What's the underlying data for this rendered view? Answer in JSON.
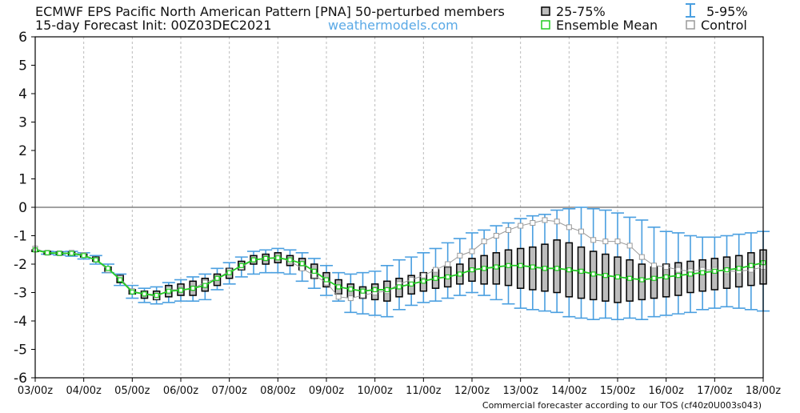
{
  "header": {
    "title_line1": "ECMWF EPS Pacific North American Pattern [PNA]  50-perturbed members",
    "title_line2": "15-day Forecast Init: 00Z03DEC2021",
    "brand": "weathermodels.com"
  },
  "legend": {
    "iqr_label": "25-75%",
    "whisker_label": "5-95%",
    "mean_label": "Ensemble Mean",
    "control_label": "Control"
  },
  "footer": "Commercial forecaster according to our TOS (cf40z0U003s043)",
  "colors": {
    "mean": "#22cc22",
    "whisker": "#4a9fe0",
    "box_fill": "#bdbdbd",
    "control": "#9a9a9a",
    "zero_line": "#444444",
    "grid": "#bbbbbb"
  },
  "chart_data": {
    "type": "box",
    "xlim": [
      0,
      15
    ],
    "ylim": [
      -6,
      6
    ],
    "x_ticks": [
      {
        "x": 0,
        "label": "03/00z"
      },
      {
        "x": 1,
        "label": "04/00z"
      },
      {
        "x": 2,
        "label": "05/00z"
      },
      {
        "x": 3,
        "label": "06/00z"
      },
      {
        "x": 4,
        "label": "07/00z"
      },
      {
        "x": 5,
        "label": "08/00z"
      },
      {
        "x": 6,
        "label": "09/00z"
      },
      {
        "x": 7,
        "label": "10/00z"
      },
      {
        "x": 8,
        "label": "11/00z"
      },
      {
        "x": 9,
        "label": "12/00z"
      },
      {
        "x": 10,
        "label": "13/00z"
      },
      {
        "x": 11,
        "label": "14/00z"
      },
      {
        "x": 12,
        "label": "15/00z"
      },
      {
        "x": 13,
        "label": "16/00z"
      },
      {
        "x": 14,
        "label": "17/00z"
      },
      {
        "x": 15,
        "label": "18/00z"
      }
    ],
    "y_ticks": [
      6,
      5,
      4,
      3,
      2,
      1,
      0,
      -1,
      -2,
      -3,
      -4,
      -5,
      -6
    ],
    "grid": "vertical dashed",
    "legend_position": "top",
    "steps": [
      {
        "t": 0.0,
        "p5": -1.5,
        "q1": -1.5,
        "q3": -1.5,
        "p95": -1.5,
        "mean": -1.5,
        "control": -1.45
      },
      {
        "t": 0.25,
        "p5": -1.65,
        "q1": -1.65,
        "q3": -1.55,
        "p95": -1.55,
        "mean": -1.6,
        "control": -1.6
      },
      {
        "t": 0.5,
        "p5": -1.68,
        "q1": -1.66,
        "q3": -1.58,
        "p95": -1.56,
        "mean": -1.62,
        "control": -1.62
      },
      {
        "t": 0.75,
        "p5": -1.72,
        "q1": -1.68,
        "q3": -1.58,
        "p95": -1.55,
        "mean": -1.62,
        "control": -1.6
      },
      {
        "t": 1.0,
        "p5": -1.82,
        "q1": -1.75,
        "q3": -1.65,
        "p95": -1.6,
        "mean": -1.7,
        "control": -1.68
      },
      {
        "t": 1.25,
        "p5": -2.0,
        "q1": -1.9,
        "q3": -1.75,
        "p95": -1.7,
        "mean": -1.85,
        "control": -1.85
      },
      {
        "t": 1.5,
        "p5": -2.3,
        "q1": -2.25,
        "q3": -2.1,
        "p95": -2.0,
        "mean": -2.15,
        "control": -2.2
      },
      {
        "t": 1.75,
        "p5": -2.75,
        "q1": -2.65,
        "q3": -2.4,
        "p95": -2.35,
        "mean": -2.55,
        "control": -2.5
      },
      {
        "t": 2.0,
        "p5": -3.2,
        "q1": -3.05,
        "q3": -2.9,
        "p95": -2.75,
        "mean": -2.98,
        "control": -2.95
      },
      {
        "t": 2.25,
        "p5": -3.35,
        "q1": -3.2,
        "q3": -2.95,
        "p95": -2.85,
        "mean": -3.05,
        "control": -3.05
      },
      {
        "t": 2.5,
        "p5": -3.4,
        "q1": -3.25,
        "q3": -2.95,
        "p95": -2.8,
        "mean": -3.1,
        "control": -3.15
      },
      {
        "t": 2.75,
        "p5": -3.35,
        "q1": -3.15,
        "q3": -2.75,
        "p95": -2.65,
        "mean": -2.95,
        "control": -2.9
      },
      {
        "t": 3.0,
        "p5": -3.3,
        "q1": -3.1,
        "q3": -2.7,
        "p95": -2.55,
        "mean": -2.92,
        "control": -2.9
      },
      {
        "t": 3.25,
        "p5": -3.3,
        "q1": -3.1,
        "q3": -2.6,
        "p95": -2.45,
        "mean": -2.85,
        "control": -2.85
      },
      {
        "t": 3.5,
        "p5": -3.25,
        "q1": -2.95,
        "q3": -2.5,
        "p95": -2.35,
        "mean": -2.75,
        "control": -2.65
      },
      {
        "t": 3.75,
        "p5": -2.9,
        "q1": -2.75,
        "q3": -2.35,
        "p95": -2.15,
        "mean": -2.5,
        "control": -2.5
      },
      {
        "t": 4.0,
        "p5": -2.7,
        "q1": -2.5,
        "q3": -2.15,
        "p95": -1.95,
        "mean": -2.3,
        "control": -2.25
      },
      {
        "t": 4.25,
        "p5": -2.45,
        "q1": -2.2,
        "q3": -1.9,
        "p95": -1.75,
        "mean": -2.05,
        "control": -2.1
      },
      {
        "t": 4.5,
        "p5": -2.35,
        "q1": -2.0,
        "q3": -1.7,
        "p95": -1.55,
        "mean": -1.85,
        "control": -1.85
      },
      {
        "t": 4.75,
        "p5": -2.3,
        "q1": -2.0,
        "q3": -1.65,
        "p95": -1.5,
        "mean": -1.8,
        "control": -1.8
      },
      {
        "t": 5.0,
        "p5": -2.3,
        "q1": -1.95,
        "q3": -1.6,
        "p95": -1.45,
        "mean": -1.78,
        "control": -1.75
      },
      {
        "t": 5.25,
        "p5": -2.35,
        "q1": -2.05,
        "q3": -1.7,
        "p95": -1.5,
        "mean": -1.85,
        "control": -1.9
      },
      {
        "t": 5.5,
        "p5": -2.6,
        "q1": -2.2,
        "q3": -1.8,
        "p95": -1.6,
        "mean": -1.98,
        "control": -2.15
      },
      {
        "t": 5.75,
        "p5": -2.85,
        "q1": -2.5,
        "q3": -2.0,
        "p95": -1.8,
        "mean": -2.25,
        "control": -2.4
      },
      {
        "t": 6.0,
        "p5": -3.1,
        "q1": -2.8,
        "q3": -2.3,
        "p95": -2.05,
        "mean": -2.55,
        "control": -2.65
      },
      {
        "t": 6.25,
        "p5": -3.3,
        "q1": -3.05,
        "q3": -2.55,
        "p95": -2.3,
        "mean": -2.8,
        "control": -3.15
      },
      {
        "t": 6.5,
        "p5": -3.7,
        "q1": -3.15,
        "q3": -2.7,
        "p95": -2.35,
        "mean": -2.88,
        "control": -3.2
      },
      {
        "t": 6.75,
        "p5": -3.75,
        "q1": -3.2,
        "q3": -2.8,
        "p95": -2.3,
        "mean": -2.95,
        "control": -3.1
      },
      {
        "t": 7.0,
        "p5": -3.8,
        "q1": -3.25,
        "q3": -2.7,
        "p95": -2.25,
        "mean": -2.9,
        "control": -3.0
      },
      {
        "t": 7.25,
        "p5": -3.85,
        "q1": -3.3,
        "q3": -2.6,
        "p95": -2.05,
        "mean": -2.9,
        "control": -2.95
      },
      {
        "t": 7.5,
        "p5": -3.6,
        "q1": -3.15,
        "q3": -2.5,
        "p95": -1.85,
        "mean": -2.8,
        "control": -2.7
      },
      {
        "t": 7.75,
        "p5": -3.45,
        "q1": -3.05,
        "q3": -2.4,
        "p95": -1.75,
        "mean": -2.7,
        "control": -2.55
      },
      {
        "t": 8.0,
        "p5": -3.35,
        "q1": -2.95,
        "q3": -2.3,
        "p95": -1.6,
        "mean": -2.6,
        "control": -2.4
      },
      {
        "t": 8.25,
        "p5": -3.3,
        "q1": -2.85,
        "q3": -2.2,
        "p95": -1.45,
        "mean": -2.5,
        "control": -2.2
      },
      {
        "t": 8.5,
        "p5": -3.2,
        "q1": -2.8,
        "q3": -2.1,
        "p95": -1.25,
        "mean": -2.45,
        "control": -2.0
      },
      {
        "t": 8.75,
        "p5": -3.1,
        "q1": -2.7,
        "q3": -2.0,
        "p95": -1.1,
        "mean": -2.35,
        "control": -1.7
      },
      {
        "t": 9.0,
        "p5": -3.0,
        "q1": -2.6,
        "q3": -1.8,
        "p95": -0.9,
        "mean": -2.2,
        "control": -1.55
      },
      {
        "t": 9.25,
        "p5": -3.1,
        "q1": -2.7,
        "q3": -1.7,
        "p95": -0.8,
        "mean": -2.15,
        "control": -1.2
      },
      {
        "t": 9.5,
        "p5": -3.25,
        "q1": -2.7,
        "q3": -1.6,
        "p95": -0.65,
        "mean": -2.1,
        "control": -1.0
      },
      {
        "t": 9.75,
        "p5": -3.4,
        "q1": -2.75,
        "q3": -1.5,
        "p95": -0.55,
        "mean": -2.05,
        "control": -0.8
      },
      {
        "t": 10.0,
        "p5": -3.55,
        "q1": -2.85,
        "q3": -1.45,
        "p95": -0.4,
        "mean": -2.05,
        "control": -0.65
      },
      {
        "t": 10.25,
        "p5": -3.6,
        "q1": -2.9,
        "q3": -1.4,
        "p95": -0.3,
        "mean": -2.1,
        "control": -0.55
      },
      {
        "t": 10.5,
        "p5": -3.65,
        "q1": -2.95,
        "q3": -1.3,
        "p95": -0.25,
        "mean": -2.15,
        "control": -0.45
      },
      {
        "t": 10.75,
        "p5": -3.7,
        "q1": -3.0,
        "q3": -1.15,
        "p95": -0.1,
        "mean": -2.15,
        "control": -0.5
      },
      {
        "t": 11.0,
        "p5": -3.85,
        "q1": -3.15,
        "q3": -1.25,
        "p95": -0.05,
        "mean": -2.2,
        "control": -0.7
      },
      {
        "t": 11.25,
        "p5": -3.9,
        "q1": -3.2,
        "q3": -1.4,
        "p95": 0.0,
        "mean": -2.25,
        "control": -0.85
      },
      {
        "t": 11.5,
        "p5": -3.95,
        "q1": -3.25,
        "q3": -1.55,
        "p95": -0.05,
        "mean": -2.35,
        "control": -1.15
      },
      {
        "t": 11.75,
        "p5": -3.9,
        "q1": -3.3,
        "q3": -1.65,
        "p95": -0.1,
        "mean": -2.4,
        "control": -1.2
      },
      {
        "t": 12.0,
        "p5": -3.95,
        "q1": -3.35,
        "q3": -1.75,
        "p95": -0.2,
        "mean": -2.45,
        "control": -1.2
      },
      {
        "t": 12.25,
        "p5": -3.9,
        "q1": -3.3,
        "q3": -1.85,
        "p95": -0.35,
        "mean": -2.5,
        "control": -1.35
      },
      {
        "t": 12.5,
        "p5": -3.95,
        "q1": -3.25,
        "q3": -2.0,
        "p95": -0.45,
        "mean": -2.55,
        "control": -1.75
      },
      {
        "t": 12.75,
        "p5": -3.85,
        "q1": -3.2,
        "q3": -2.1,
        "p95": -0.7,
        "mean": -2.5,
        "control": -2.05
      },
      {
        "t": 13.0,
        "p5": -3.8,
        "q1": -3.15,
        "q3": -2.0,
        "p95": -0.85,
        "mean": -2.45,
        "control": -2.1
      },
      {
        "t": 13.25,
        "p5": -3.75,
        "q1": -3.1,
        "q3": -1.95,
        "p95": -0.9,
        "mean": -2.4,
        "control": -2.2
      },
      {
        "t": 13.5,
        "p5": -3.7,
        "q1": -3.0,
        "q3": -1.9,
        "p95": -1.0,
        "mean": -2.35,
        "control": -2.25
      },
      {
        "t": 13.75,
        "p5": -3.6,
        "q1": -2.95,
        "q3": -1.85,
        "p95": -1.05,
        "mean": -2.3,
        "control": -2.2
      },
      {
        "t": 14.0,
        "p5": -3.55,
        "q1": -2.9,
        "q3": -1.8,
        "p95": -1.05,
        "mean": -2.25,
        "control": -2.2
      },
      {
        "t": 14.25,
        "p5": -3.5,
        "q1": -2.85,
        "q3": -1.75,
        "p95": -1.0,
        "mean": -2.2,
        "control": -2.25
      },
      {
        "t": 14.5,
        "p5": -3.55,
        "q1": -2.8,
        "q3": -1.7,
        "p95": -0.95,
        "mean": -2.15,
        "control": -2.25
      },
      {
        "t": 14.75,
        "p5": -3.6,
        "q1": -2.75,
        "q3": -1.6,
        "p95": -0.9,
        "mean": -2.05,
        "control": -2.2
      },
      {
        "t": 15.0,
        "p5": -3.65,
        "q1": -2.7,
        "q3": -1.5,
        "p95": -0.85,
        "mean": -1.95,
        "control": -2.1
      }
    ]
  }
}
